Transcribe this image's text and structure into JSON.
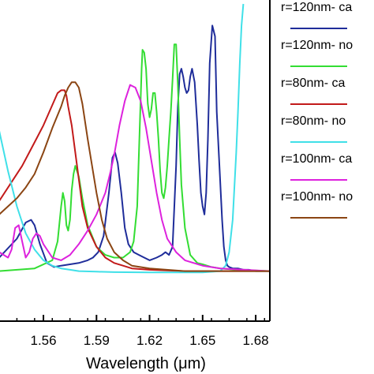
{
  "chart_data": {
    "type": "line",
    "title": "",
    "xlabel": "Wavelength (μm)",
    "ylabel": "",
    "xlim": [
      1.535,
      1.688
    ],
    "ylim": [
      0,
      1
    ],
    "xticks": [
      1.56,
      1.59,
      1.62,
      1.65,
      1.68
    ],
    "xtick_labels": [
      "1.56",
      "1.59",
      "1.62",
      "1.65",
      "1.68"
    ],
    "grid": false,
    "legend_position": "right",
    "series": [
      {
        "name": "r=120nm- ca",
        "color": "#1f2d9a",
        "x": [
          1.535,
          1.545,
          1.55,
          1.553,
          1.555,
          1.558,
          1.562,
          1.566,
          1.57,
          1.575,
          1.58,
          1.585,
          1.588,
          1.591,
          1.594,
          1.597,
          1.599,
          1.6005,
          1.602,
          1.604,
          1.606,
          1.608,
          1.611,
          1.614,
          1.617,
          1.62,
          1.624,
          1.627,
          1.629,
          1.631,
          1.633,
          1.635,
          1.636,
          1.637,
          1.638,
          1.639,
          1.64,
          1.641,
          1.642,
          1.643,
          1.644,
          1.6455,
          1.647,
          1.648,
          1.649,
          1.65,
          1.651,
          1.652,
          1.653,
          1.654,
          1.6555,
          1.657,
          1.658,
          1.6595,
          1.661,
          1.662,
          1.663,
          1.664,
          1.665,
          1.667,
          1.67,
          1.673,
          1.676,
          1.68,
          1.688
        ],
        "y": [
          0.06,
          0.13,
          0.19,
          0.2,
          0.18,
          0.11,
          0.04,
          0.025,
          0.03,
          0.035,
          0.04,
          0.05,
          0.06,
          0.08,
          0.14,
          0.3,
          0.43,
          0.45,
          0.41,
          0.3,
          0.17,
          0.11,
          0.08,
          0.07,
          0.06,
          0.05,
          0.06,
          0.07,
          0.08,
          0.07,
          0.1,
          0.4,
          0.62,
          0.74,
          0.76,
          0.73,
          0.69,
          0.67,
          0.68,
          0.73,
          0.76,
          0.71,
          0.55,
          0.42,
          0.3,
          0.25,
          0.22,
          0.3,
          0.5,
          0.78,
          0.92,
          0.88,
          0.6,
          0.4,
          0.2,
          0.1,
          0.05,
          0.03,
          0.025,
          0.02,
          0.02,
          0.015,
          0.015,
          0.01,
          0.01
        ]
      },
      {
        "name": "r=120nm- no",
        "color": "#33dd33",
        "x": [
          1.535,
          1.555,
          1.565,
          1.568,
          1.57,
          1.571,
          1.572,
          1.573,
          1.574,
          1.575,
          1.576,
          1.577,
          1.578,
          1.58,
          1.582,
          1.585,
          1.59,
          1.595,
          1.6,
          1.605,
          1.609,
          1.611,
          1.613,
          1.614,
          1.615,
          1.6155,
          1.616,
          1.617,
          1.618,
          1.619,
          1.62,
          1.621,
          1.622,
          1.623,
          1.624,
          1.625,
          1.626,
          1.627,
          1.628,
          1.629,
          1.63,
          1.631,
          1.632,
          1.633,
          1.634,
          1.635,
          1.636,
          1.637,
          1.638,
          1.64,
          1.643,
          1.647,
          1.65,
          1.655,
          1.66,
          1.67,
          1.688
        ],
        "y": [
          0.01,
          0.02,
          0.05,
          0.12,
          0.25,
          0.3,
          0.27,
          0.18,
          0.16,
          0.2,
          0.31,
          0.37,
          0.4,
          0.36,
          0.28,
          0.18,
          0.1,
          0.07,
          0.06,
          0.06,
          0.08,
          0.12,
          0.25,
          0.45,
          0.65,
          0.76,
          0.83,
          0.82,
          0.76,
          0.63,
          0.58,
          0.61,
          0.67,
          0.67,
          0.6,
          0.5,
          0.38,
          0.3,
          0.28,
          0.32,
          0.4,
          0.5,
          0.6,
          0.72,
          0.85,
          0.85,
          0.7,
          0.5,
          0.33,
          0.17,
          0.07,
          0.04,
          0.035,
          0.025,
          0.02,
          0.015,
          0.01
        ]
      },
      {
        "name": "r=80nm- ca",
        "color": "#c21a1a",
        "x": [
          1.535,
          1.548,
          1.552,
          1.556,
          1.56,
          1.564,
          1.566,
          1.568,
          1.57,
          1.572,
          1.573,
          1.574,
          1.576,
          1.578,
          1.58,
          1.582,
          1.585,
          1.59,
          1.595,
          1.6,
          1.605,
          1.61,
          1.62,
          1.64,
          1.688
        ],
        "y": [
          0.27,
          0.4,
          0.45,
          0.5,
          0.55,
          0.61,
          0.64,
          0.67,
          0.68,
          0.68,
          0.66,
          0.62,
          0.55,
          0.45,
          0.35,
          0.25,
          0.17,
          0.1,
          0.06,
          0.04,
          0.03,
          0.02,
          0.015,
          0.01,
          0.01
        ]
      },
      {
        "name": "r=80nm- no",
        "color": "#40e0e8",
        "x": [
          1.535,
          1.54,
          1.545,
          1.55,
          1.555,
          1.56,
          1.565,
          1.57,
          1.575,
          1.58,
          1.59,
          1.6,
          1.62,
          1.65,
          1.66,
          1.663,
          1.665,
          1.667,
          1.669,
          1.67,
          1.671,
          1.672,
          1.673
        ],
        "y": [
          0.53,
          0.38,
          0.25,
          0.15,
          0.09,
          0.05,
          0.03,
          0.02,
          0.015,
          0.01,
          0.008,
          0.006,
          0.005,
          0.005,
          0.01,
          0.03,
          0.08,
          0.2,
          0.45,
          0.6,
          0.78,
          0.92,
          1.0
        ]
      },
      {
        "name": "r=100nm- ca",
        "color": "#dd22dd",
        "x": [
          1.535,
          1.54,
          1.542,
          1.544,
          1.546,
          1.548,
          1.55,
          1.552,
          1.554,
          1.556,
          1.558,
          1.56,
          1.565,
          1.57,
          1.575,
          1.58,
          1.585,
          1.59,
          1.595,
          1.598,
          1.6,
          1.603,
          1.606,
          1.609,
          1.612,
          1.615,
          1.618,
          1.621,
          1.624,
          1.627,
          1.63,
          1.635,
          1.64,
          1.65,
          1.66,
          1.688
        ],
        "y": [
          0.08,
          0.06,
          0.09,
          0.17,
          0.18,
          0.12,
          0.06,
          0.08,
          0.13,
          0.15,
          0.14,
          0.11,
          0.06,
          0.05,
          0.07,
          0.11,
          0.16,
          0.22,
          0.3,
          0.38,
          0.44,
          0.55,
          0.64,
          0.7,
          0.69,
          0.64,
          0.54,
          0.42,
          0.3,
          0.2,
          0.13,
          0.08,
          0.05,
          0.03,
          0.02,
          0.01
        ]
      },
      {
        "name": "r=100nm- no",
        "color": "#8b4513",
        "x": [
          1.535,
          1.54,
          1.545,
          1.55,
          1.555,
          1.56,
          1.565,
          1.57,
          1.572,
          1.574,
          1.576,
          1.578,
          1.58,
          1.582,
          1.585,
          1.588,
          1.59,
          1.593,
          1.596,
          1.6,
          1.605,
          1.61,
          1.62,
          1.64,
          1.688
        ],
        "y": [
          0.22,
          0.25,
          0.28,
          0.32,
          0.37,
          0.45,
          0.54,
          0.62,
          0.66,
          0.69,
          0.71,
          0.71,
          0.69,
          0.63,
          0.5,
          0.38,
          0.3,
          0.2,
          0.13,
          0.08,
          0.05,
          0.03,
          0.02,
          0.01,
          0.01
        ]
      }
    ],
    "legend_entries": [
      {
        "label": "r=120nm- ca",
        "color": "#1f2d9a"
      },
      {
        "label": "r=120nm- no",
        "color": "#33dd33"
      },
      {
        "label": "r=80nm- ca",
        "color": "#c21a1a"
      },
      {
        "label": "r=80nm- no",
        "color": "#40e0e8"
      },
      {
        "label": "r=100nm- ca",
        "color": "#dd22dd"
      },
      {
        "label": "r=100nm- no",
        "color": "#8b4513"
      }
    ]
  }
}
